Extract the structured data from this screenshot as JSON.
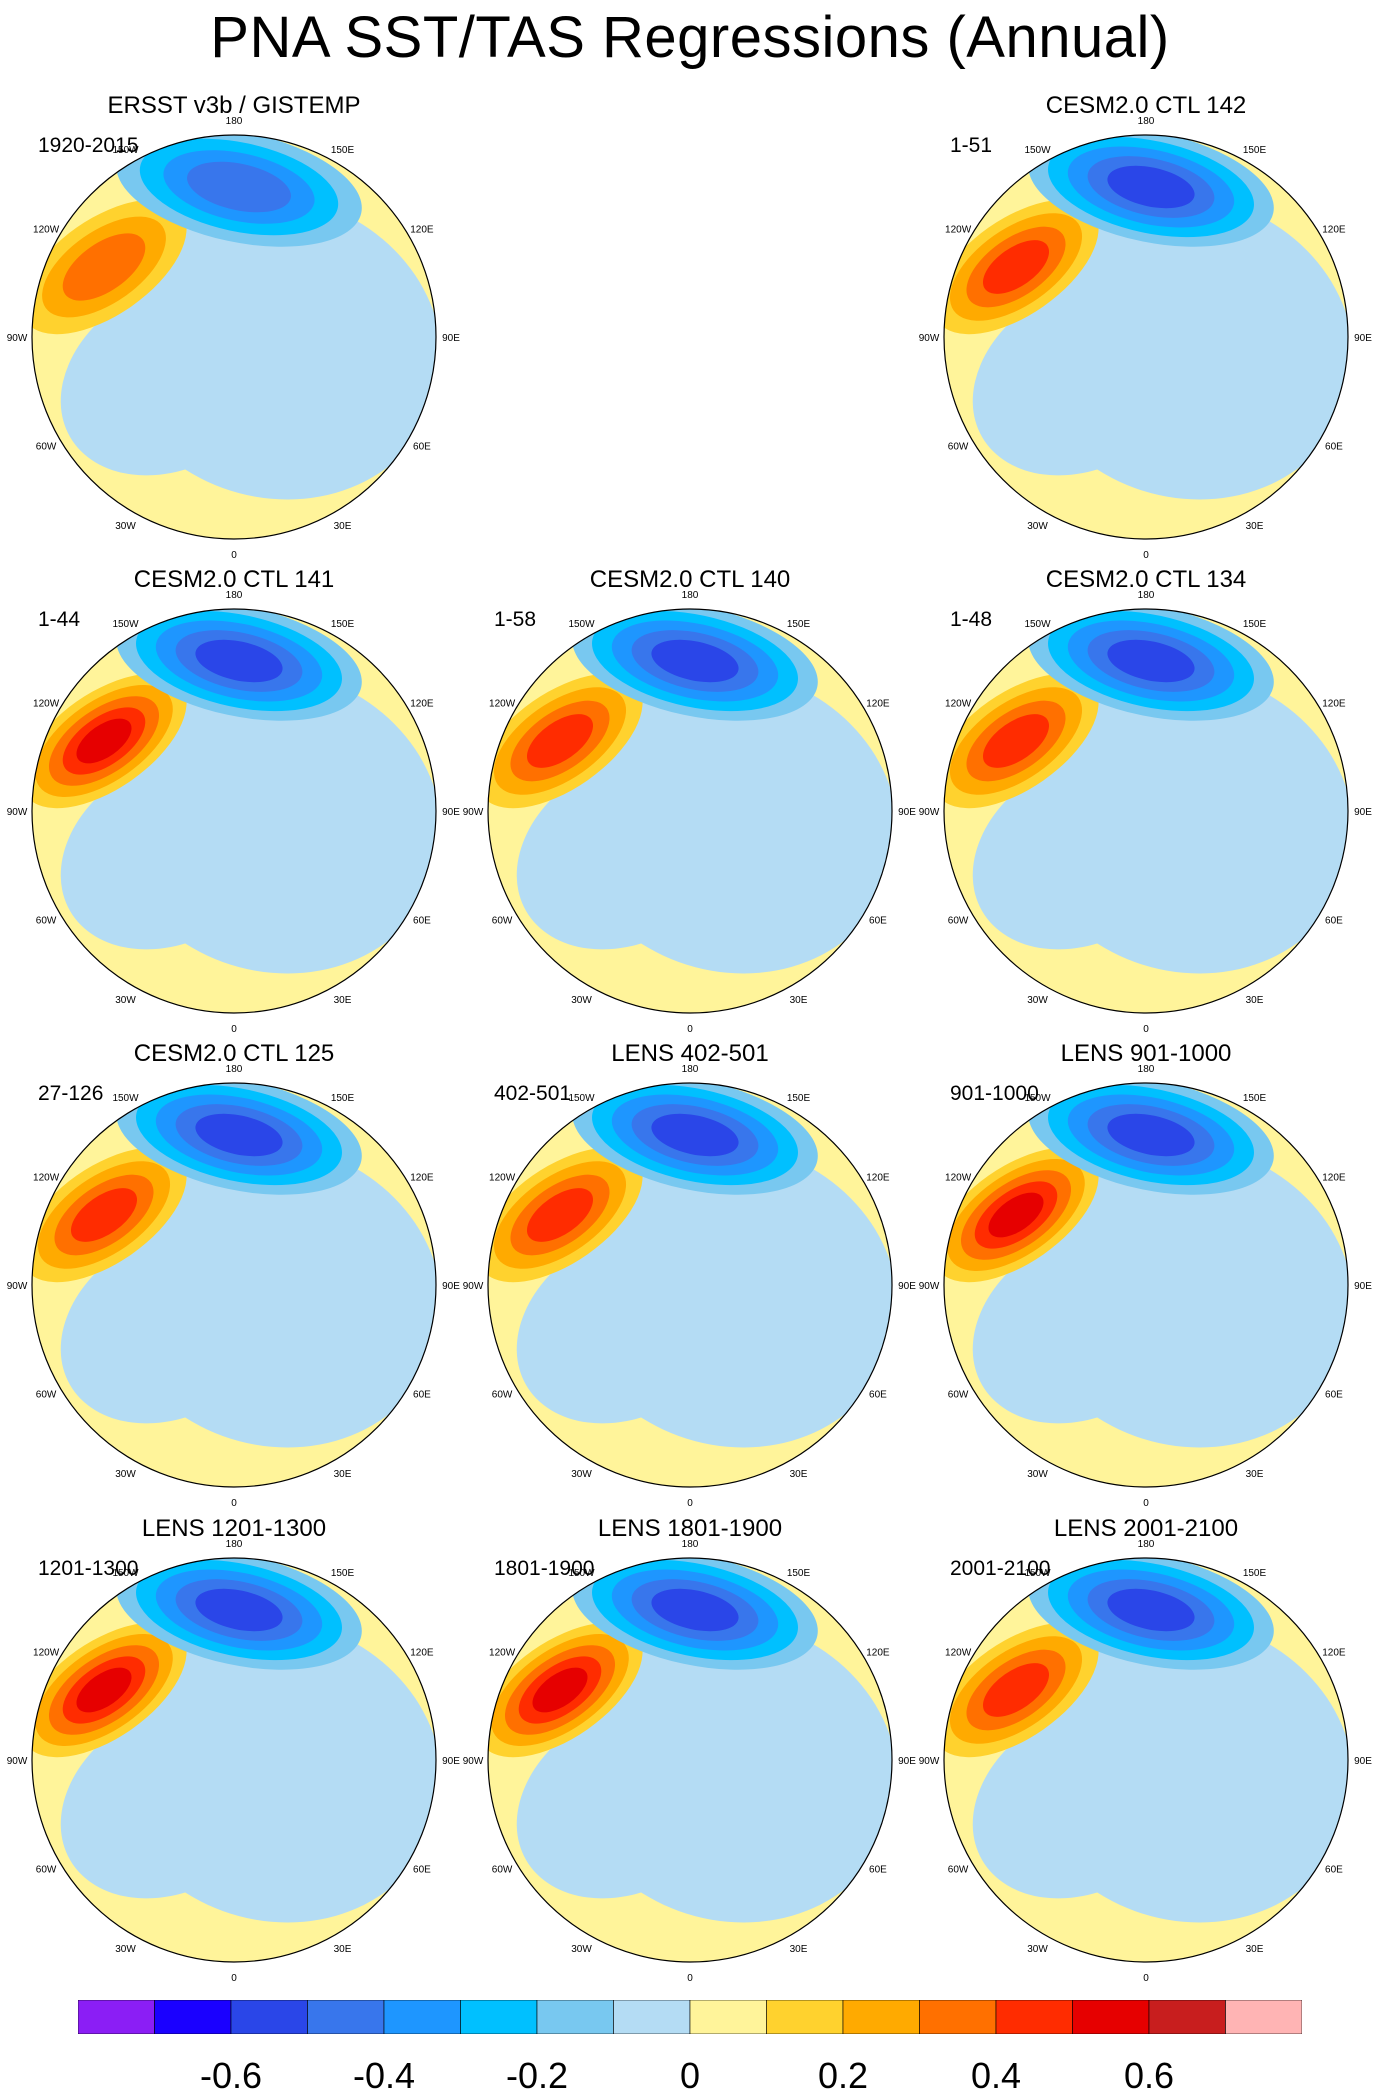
{
  "title": "PNA SST/TAS Regressions (Annual)",
  "lon_labels": [
    "180",
    "150E",
    "120E",
    "90E",
    "60E",
    "30E",
    "0",
    "30W",
    "60W",
    "90W",
    "120W",
    "150W"
  ],
  "chart_data": [
    {
      "type": "heatmap",
      "projection": "north-polar-stereographic",
      "title": "ERSST v3b / GISTEMP",
      "period": "1920-2015",
      "max_positive": 0.3,
      "max_negative": -0.5
    },
    {
      "type": "heatmap",
      "projection": "north-polar-stereographic",
      "title": "CESM2.0 CTL 142",
      "period": "1-51",
      "max_positive": 0.4,
      "max_negative": -0.6
    },
    {
      "type": "heatmap",
      "projection": "north-polar-stereographic",
      "title": "CESM2.0 CTL 141",
      "period": "1-44",
      "max_positive": 0.5,
      "max_negative": -0.6
    },
    {
      "type": "heatmap",
      "projection": "north-polar-stereographic",
      "title": "CESM2.0 CTL 140",
      "period": "1-58",
      "max_positive": 0.4,
      "max_negative": -0.6
    },
    {
      "type": "heatmap",
      "projection": "north-polar-stereographic",
      "title": "CESM2.0 CTL 134",
      "period": "1-48",
      "max_positive": 0.4,
      "max_negative": -0.6
    },
    {
      "type": "heatmap",
      "projection": "north-polar-stereographic",
      "title": "CESM2.0 CTL 125",
      "period": "27-126",
      "max_positive": 0.4,
      "max_negative": -0.6
    },
    {
      "type": "heatmap",
      "projection": "north-polar-stereographic",
      "title": "LENS 402-501",
      "period": "402-501",
      "max_positive": 0.4,
      "max_negative": -0.6
    },
    {
      "type": "heatmap",
      "projection": "north-polar-stereographic",
      "title": "LENS 901-1000",
      "period": "901-1000",
      "max_positive": 0.5,
      "max_negative": -0.6
    },
    {
      "type": "heatmap",
      "projection": "north-polar-stereographic",
      "title": "LENS 1201-1300",
      "period": "1201-1300",
      "max_positive": 0.5,
      "max_negative": -0.6
    },
    {
      "type": "heatmap",
      "projection": "north-polar-stereographic",
      "title": "LENS 1801-1900",
      "period": "1801-1900",
      "max_positive": 0.5,
      "max_negative": -0.6
    },
    {
      "type": "heatmap",
      "projection": "north-polar-stereographic",
      "title": "LENS 2001-2100",
      "period": "2001-2100",
      "max_positive": 0.4,
      "max_negative": -0.6
    }
  ],
  "colorbar": {
    "levels": [
      -0.7,
      -0.6,
      -0.5,
      -0.4,
      -0.3,
      -0.2,
      -0.1,
      0,
      0.1,
      0.2,
      0.3,
      0.4,
      0.5,
      0.6,
      0.7
    ],
    "colors": [
      "#8b1ef5",
      "#1a00ff",
      "#2a46e8",
      "#3876ec",
      "#1e96ff",
      "#00c0ff",
      "#78c8f0",
      "#b4dcf4",
      "#fff49a",
      "#ffd22e",
      "#ffaa00",
      "#ff7000",
      "#ff2c00",
      "#e60000",
      "#c81e1e",
      "#ffb4b4"
    ],
    "tick_labels": [
      "-0.6",
      "-0.4",
      "-0.2",
      "0",
      "0.2",
      "0.4",
      "0.6"
    ]
  }
}
